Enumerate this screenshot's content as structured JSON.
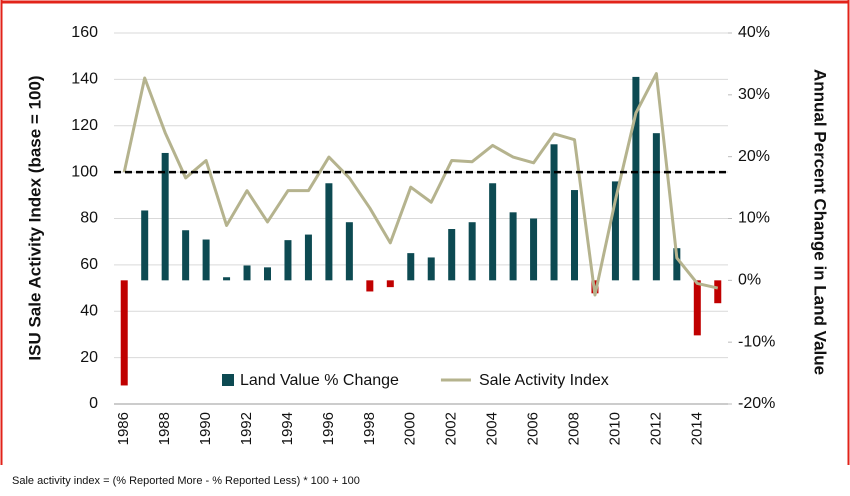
{
  "chart_data": {
    "type": "bar_line",
    "ylabel": "ISU Sale Activity Index (base = 100)",
    "y2label": "Annual Percent Change in Land Value",
    "note": "Sale activity index = (% Reported More - % Reported Less) * 100 + 100",
    "categories": [
      "1986",
      null,
      "1988",
      null,
      "1990",
      null,
      "1992",
      null,
      "1994",
      null,
      "1996",
      null,
      "1998",
      null,
      "2000",
      null,
      "2002",
      null,
      "2004",
      null,
      "2006",
      null,
      "2008",
      null,
      "2010",
      null,
      "2012",
      null,
      "2014",
      null
    ],
    "series": [
      {
        "name": "Land Value % Change",
        "type": "bar",
        "axis": "y2",
        "color": "#0d4a52",
        "negative_color": "#c00000",
        "values": [
          -17,
          11.3,
          20.6,
          8.1,
          6.6,
          0.5,
          2.4,
          2.1,
          6.5,
          7.4,
          15.7,
          9.4,
          -1.8,
          -1.1,
          4.4,
          3.7,
          8.3,
          9.4,
          15.7,
          11,
          10,
          22,
          14.6,
          -2.1,
          16,
          32.9,
          23.8,
          5.2,
          -8.9,
          -3.7
        ]
      },
      {
        "name": "Sale Activity Index",
        "type": "line",
        "axis": "y",
        "color": "#b5b38e",
        "values": [
          100,
          140.6,
          117,
          97.5,
          105,
          77,
          92,
          78.5,
          92,
          92,
          106.5,
          97.5,
          84.5,
          69.5,
          93.5,
          87,
          105,
          104.5,
          111.5,
          106.5,
          104,
          116.5,
          114,
          47,
          88,
          125.5,
          142.5,
          63,
          52,
          50
        ]
      }
    ],
    "reference_line": 100,
    "ylim": [
      0,
      160
    ],
    "yticks": [
      0,
      20,
      40,
      60,
      80,
      100,
      120,
      140,
      160
    ],
    "y2lim": [
      -20,
      40
    ],
    "y2ticks": [
      {
        "value": -20,
        "label": "-20%"
      },
      {
        "value": -10,
        "label": "-10%"
      },
      {
        "value": 0,
        "label": "0%"
      },
      {
        "value": 10,
        "label": "10%"
      },
      {
        "value": 20,
        "label": "20%"
      },
      {
        "value": 30,
        "label": "30%"
      },
      {
        "value": 40,
        "label": "40%"
      }
    ],
    "legend": "bottom"
  }
}
